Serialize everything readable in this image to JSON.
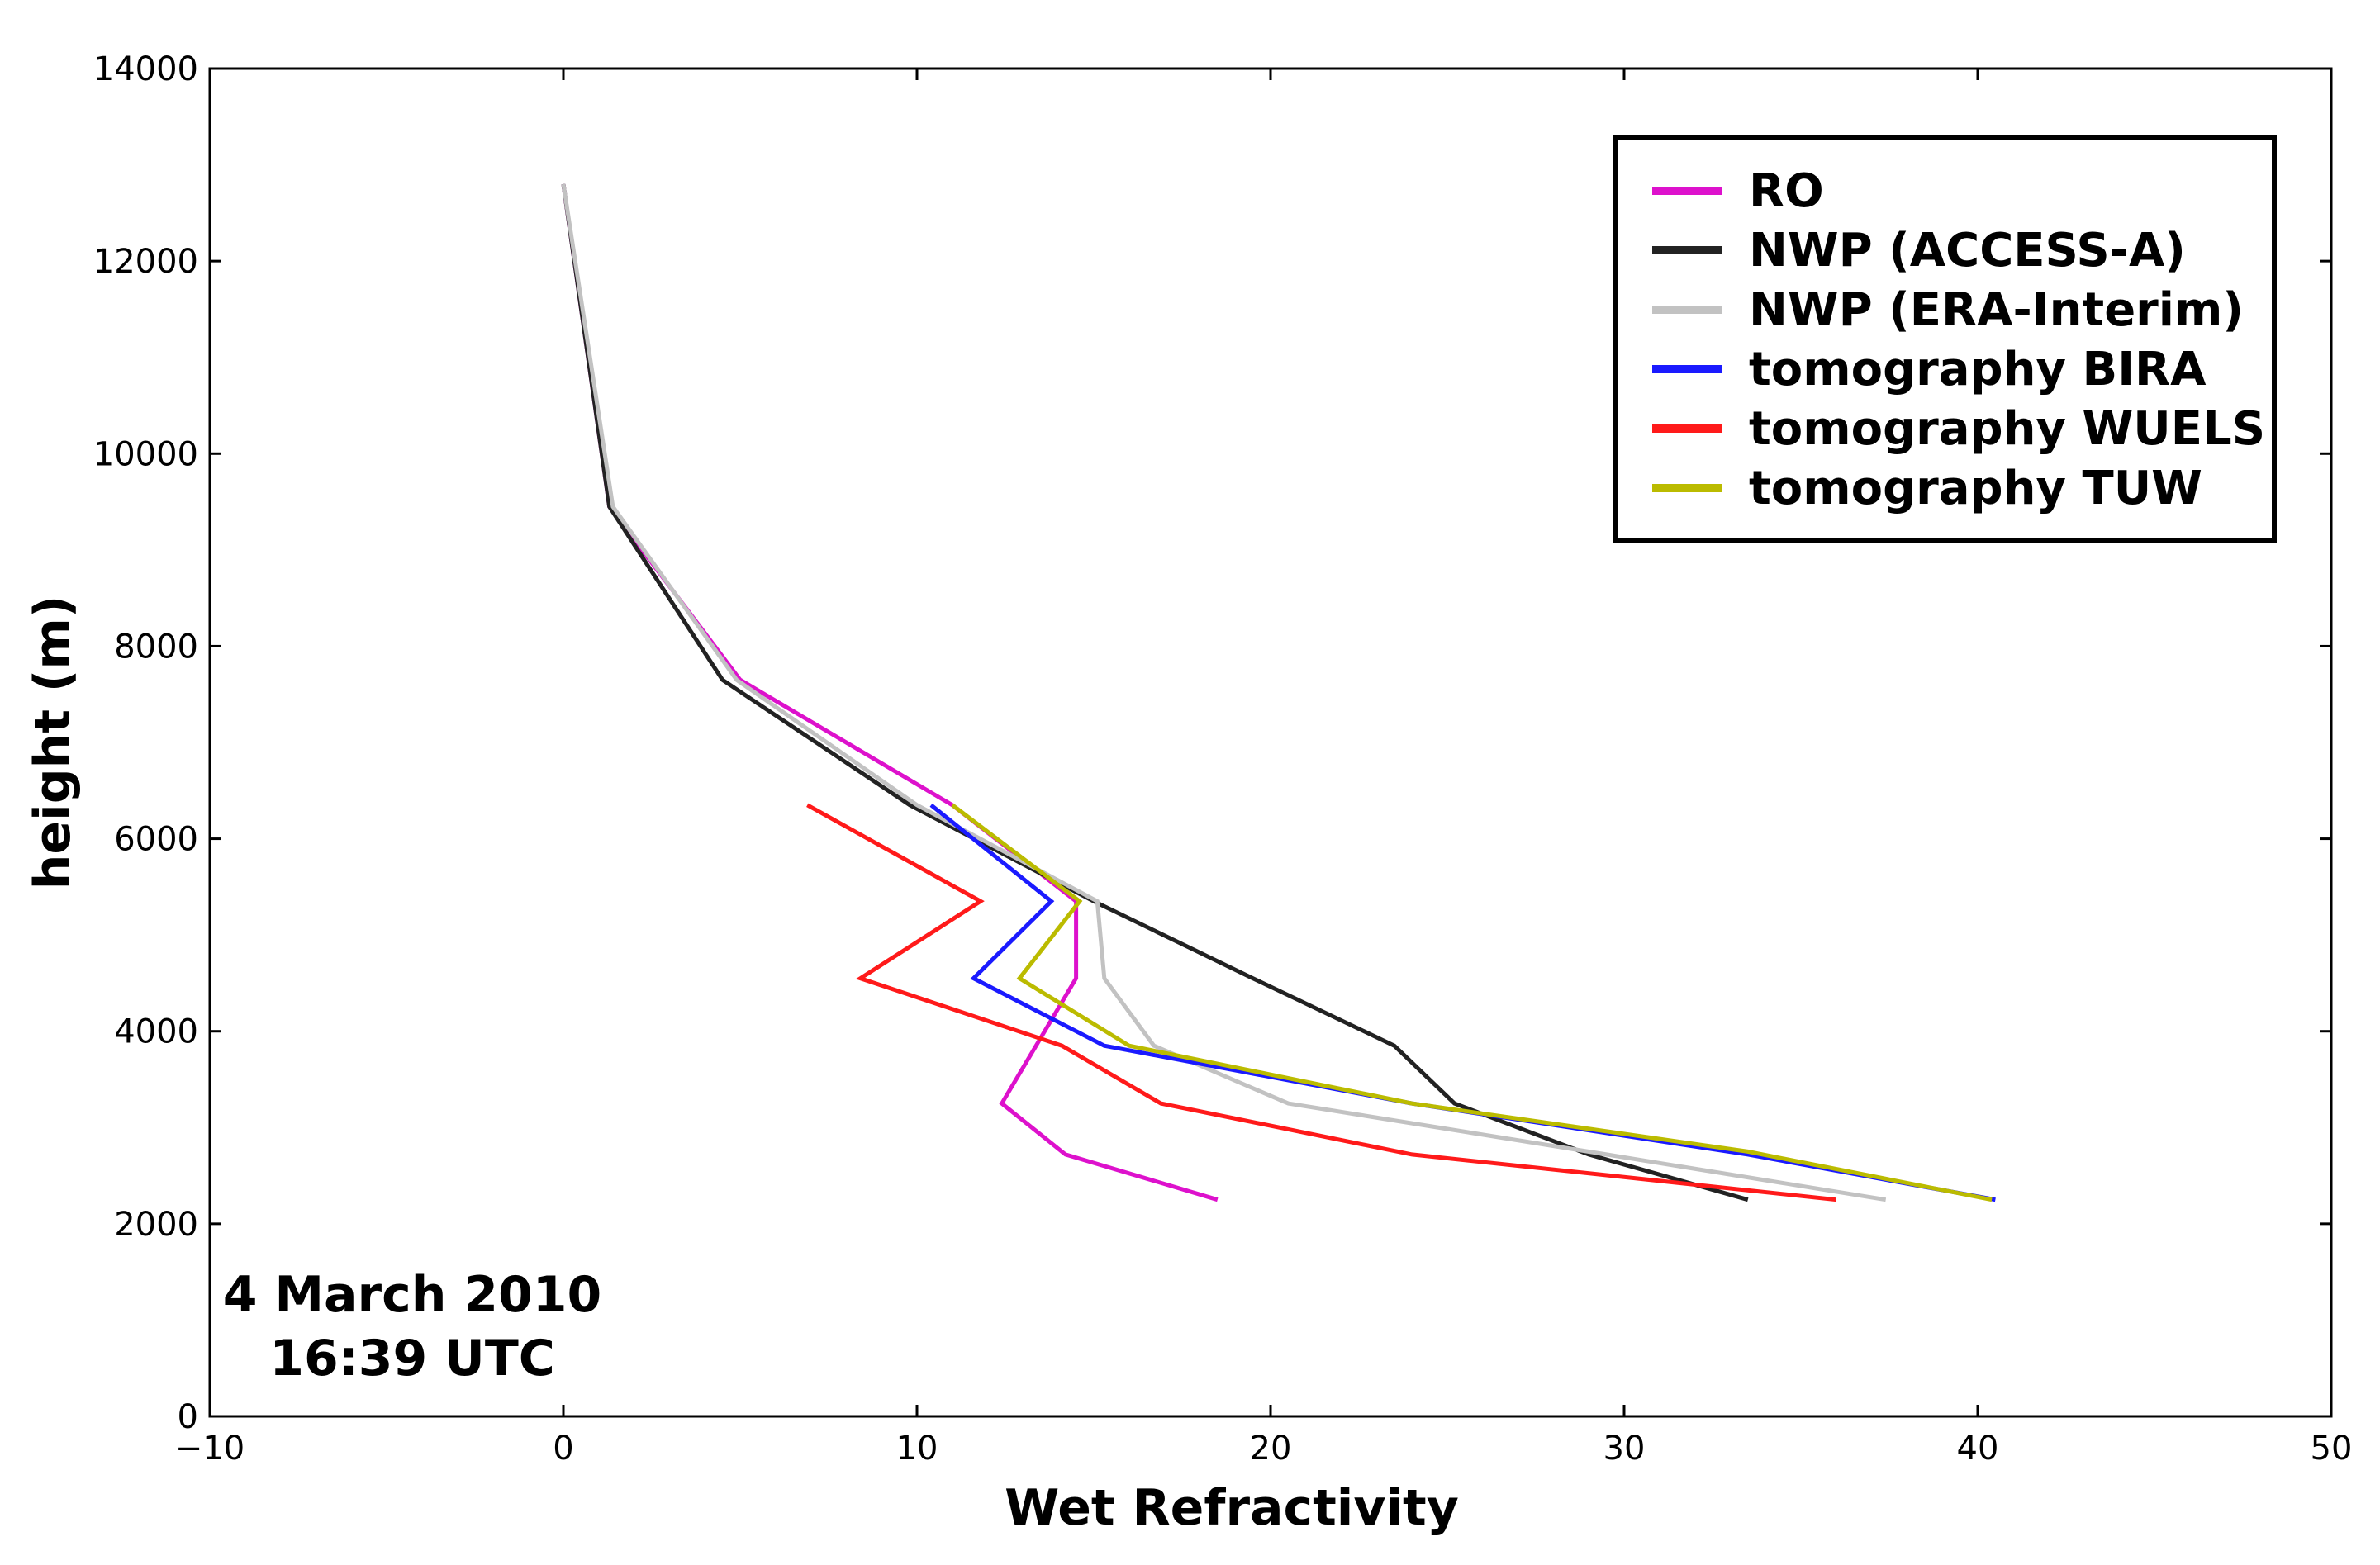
{
  "chart_data": {
    "type": "line",
    "title": "",
    "xlabel": "Wet Refractivity",
    "ylabel": "height (m)",
    "xlim": [
      -10,
      50
    ],
    "ylim": [
      0,
      14000
    ],
    "xticks": [
      -10,
      0,
      10,
      20,
      30,
      40,
      50
    ],
    "xtick_labels": [
      "−10",
      "0",
      "10",
      "20",
      "30",
      "40",
      "50"
    ],
    "yticks": [
      0,
      2000,
      4000,
      6000,
      8000,
      10000,
      12000,
      14000
    ],
    "ytick_labels": [
      "0",
      "2000",
      "4000",
      "6000",
      "8000",
      "10000",
      "12000",
      "14000"
    ],
    "grid": false,
    "legend_position": "top-right",
    "annotation": [
      "4 March 2010",
      "16:39 UTC"
    ],
    "series": [
      {
        "name": "RO",
        "color": "#dd11cc",
        "points": [
          [
            0.0,
            12800
          ],
          [
            1.3,
            9450
          ],
          [
            5.0,
            7650
          ],
          [
            11.0,
            6350
          ],
          [
            14.5,
            5350
          ],
          [
            14.5,
            4550
          ],
          [
            12.4,
            3250
          ],
          [
            14.2,
            2720
          ],
          [
            18.5,
            2250
          ]
        ]
      },
      {
        "name": "NWP (ACCESS-A)",
        "color": "#222222",
        "points": [
          [
            0.0,
            12800
          ],
          [
            1.3,
            9450
          ],
          [
            4.5,
            7650
          ],
          [
            9.8,
            6350
          ],
          [
            15.0,
            5350
          ],
          [
            19.5,
            4550
          ],
          [
            23.5,
            3850
          ],
          [
            25.2,
            3250
          ],
          [
            29.0,
            2720
          ],
          [
            33.5,
            2250
          ]
        ]
      },
      {
        "name": "NWP (ERA-Interim)",
        "color": "#c2c2c2",
        "points": [
          [
            0.0,
            12800
          ],
          [
            1.4,
            9450
          ],
          [
            4.9,
            7650
          ],
          [
            10.0,
            6350
          ],
          [
            15.1,
            5350
          ],
          [
            15.3,
            4550
          ],
          [
            16.7,
            3850
          ],
          [
            20.5,
            3250
          ],
          [
            29.5,
            2720
          ],
          [
            37.4,
            2250
          ]
        ]
      },
      {
        "name": "tomography BIRA",
        "color": "#1a1aff",
        "points": [
          [
            10.4,
            6350
          ],
          [
            13.8,
            5350
          ],
          [
            11.6,
            4550
          ],
          [
            15.3,
            3850
          ],
          [
            24.0,
            3250
          ],
          [
            33.5,
            2720
          ],
          [
            40.5,
            2250
          ]
        ]
      },
      {
        "name": "tomography WUELS",
        "color": "#ff1a1a",
        "points": [
          [
            6.9,
            6350
          ],
          [
            11.8,
            5350
          ],
          [
            8.4,
            4550
          ],
          [
            14.1,
            3850
          ],
          [
            16.9,
            3250
          ],
          [
            24.0,
            2720
          ],
          [
            36.0,
            2250
          ]
        ]
      },
      {
        "name": "tomography TUW",
        "color": "#bbbb00",
        "points": [
          [
            11.0,
            6350
          ],
          [
            14.6,
            5350
          ],
          [
            12.9,
            4550
          ],
          [
            16.0,
            3850
          ],
          [
            24.0,
            3250
          ],
          [
            33.5,
            2750
          ],
          [
            40.4,
            2250
          ]
        ]
      }
    ]
  }
}
